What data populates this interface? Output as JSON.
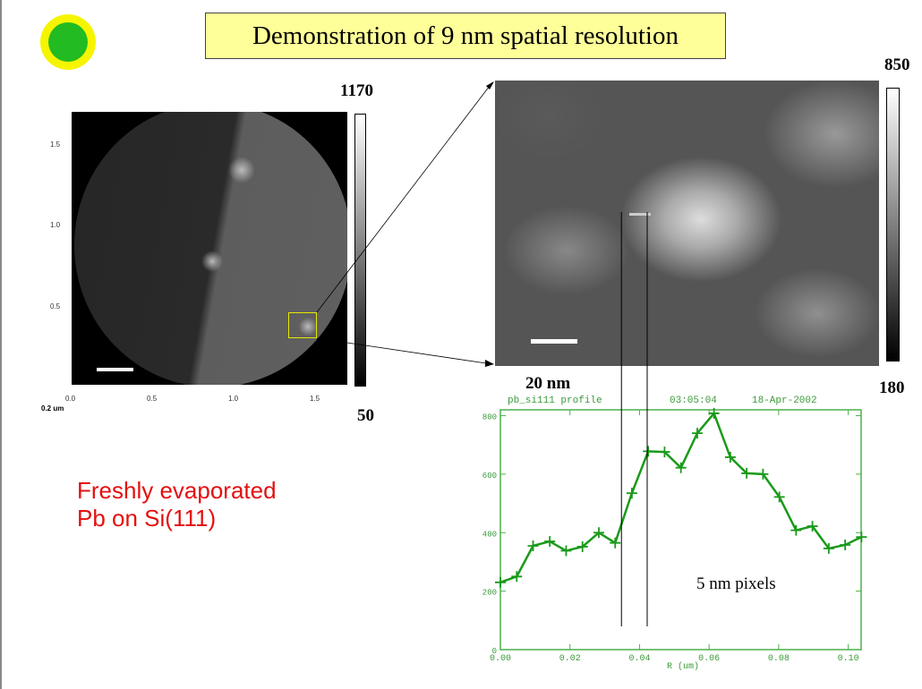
{
  "slide": {
    "title": "Demonstration of 9 nm spatial resolution",
    "caption_line1": "Freshly evaporated",
    "caption_line2": "Pb on Si(111)",
    "logo_icon": "yellow-green-circle-logo"
  },
  "left_image": {
    "colorbar_max": "1170",
    "colorbar_min": "50",
    "scale_label": "0.2 um",
    "x_ticks": [
      "0.0",
      "0.5",
      "1.0",
      "1.5"
    ],
    "y_ticks": [
      "1.5",
      "1.0",
      "0.5"
    ],
    "highlight_color": "#e8e800"
  },
  "right_image": {
    "colorbar_max": "850",
    "colorbar_min": "180",
    "scale_label": "20 nm"
  },
  "annotation": "5 nm pixels",
  "chart_data": {
    "type": "line",
    "title": "pb_si111 profile",
    "timestamp": "03:05:04",
    "date": "18-Apr-2002",
    "xlabel": "R (um)",
    "ylabel": "",
    "xlim": [
      0,
      0.1037
    ],
    "ylim": [
      0,
      820
    ],
    "x_ticks": [
      "0.00",
      "0.02",
      "0.04",
      "0.06",
      "0.08",
      "0.10"
    ],
    "y_ticks": [
      "0",
      "200",
      "400",
      "600",
      "800"
    ],
    "color": "#1a9a1a",
    "grid": false,
    "x": [
      0,
      0.0047,
      0.0094,
      0.0142,
      0.0189,
      0.0236,
      0.0283,
      0.033,
      0.0378,
      0.0425,
      0.0472,
      0.0519,
      0.0566,
      0.0614,
      0.0661,
      0.0708,
      0.0755,
      0.0802,
      0.085,
      0.0897,
      0.0944,
      0.0991,
      0.1038
    ],
    "values": [
      230,
      250,
      355,
      370,
      338,
      352,
      400,
      365,
      535,
      678,
      676,
      622,
      740,
      808,
      658,
      603,
      600,
      522,
      408,
      422,
      346,
      358,
      385
    ],
    "marker_lines_x": [
      0.0348,
      0.0422
    ]
  }
}
